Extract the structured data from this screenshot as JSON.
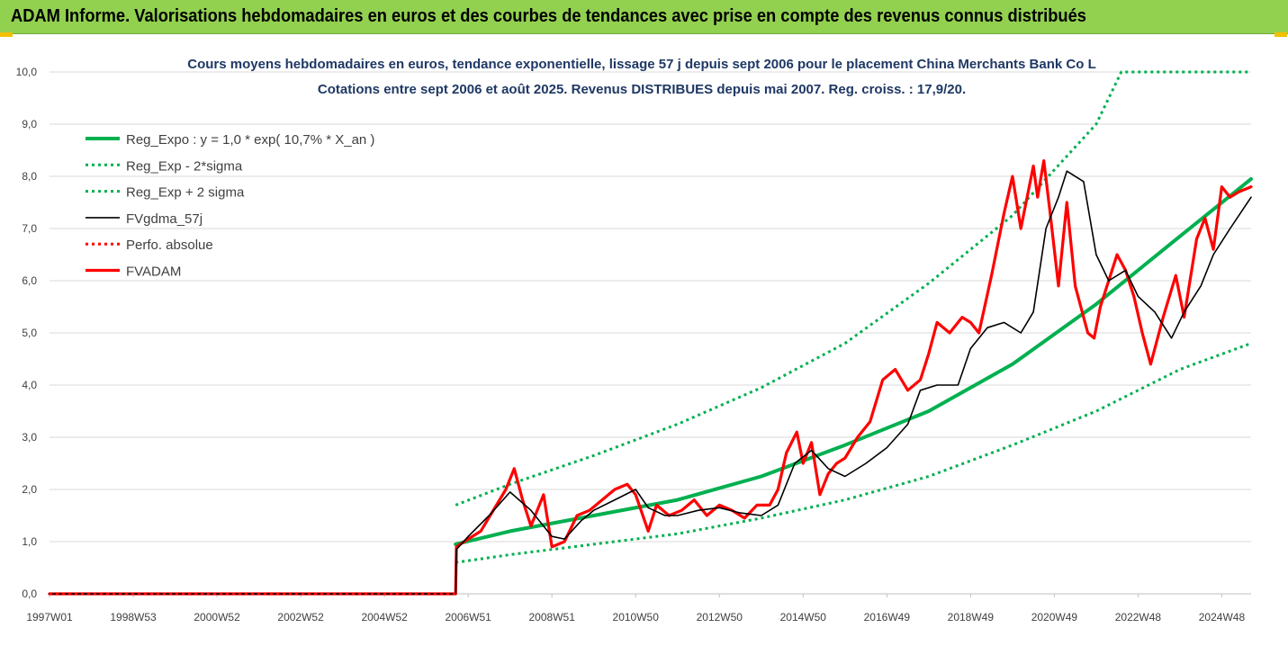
{
  "banner": {
    "title": "ADAM Informe. Valorisations hebdomadaires en euros et des courbes de tendances avec prise en compte des revenus connus distribués"
  },
  "chart_data": {
    "type": "line",
    "title": "Cours moyens hebdomadaires en euros, tendance exponentielle, lissage 57 j depuis sept 2006 pour le placement China Merchants Bank Co L",
    "subtitle": "Cotations entre sept 2006 et août 2025. Revenus DISTRIBUES depuis mai 2007. Reg. croiss. : 17,9/20.",
    "xlabel": "",
    "ylabel": "",
    "ylim": [
      0,
      10
    ],
    "y_ticks": [
      "0,0",
      "1,0",
      "2,0",
      "3,0",
      "4,0",
      "5,0",
      "6,0",
      "7,0",
      "8,0",
      "9,0",
      "10,0"
    ],
    "xlim": [
      1997.0,
      2025.7
    ],
    "x_ticks": [
      {
        "label": "1997W01",
        "year": 1997.0
      },
      {
        "label": "1998W53",
        "year": 1999.0
      },
      {
        "label": "2000W52",
        "year": 2001.0
      },
      {
        "label": "2002W52",
        "year": 2003.0
      },
      {
        "label": "2004W52",
        "year": 2005.0
      },
      {
        "label": "2006W51",
        "year": 2007.0
      },
      {
        "label": "2008W51",
        "year": 2009.0
      },
      {
        "label": "2010W50",
        "year": 2011.0
      },
      {
        "label": "2012W50",
        "year": 2013.0
      },
      {
        "label": "2014W50",
        "year": 2015.0
      },
      {
        "label": "2016W49",
        "year": 2017.0
      },
      {
        "label": "2018W49",
        "year": 2019.0
      },
      {
        "label": "2020W49",
        "year": 2021.0
      },
      {
        "label": "2022W48",
        "year": 2023.0
      },
      {
        "label": "2024W48",
        "year": 2025.0
      }
    ],
    "grid": "horizontal",
    "legend_position": "top-left",
    "series": [
      {
        "name": "Reg_Expo : y = 1,0 * exp( 10,7% *  X_an )",
        "color": "#00b050",
        "style": "solid",
        "x": [
          2006.7,
          2008,
          2010,
          2012,
          2014,
          2016,
          2018,
          2020,
          2022,
          2024,
          2025.7
        ],
        "y": [
          0.95,
          1.2,
          1.5,
          1.8,
          2.25,
          2.85,
          3.5,
          4.4,
          5.55,
          6.85,
          7.95
        ]
      },
      {
        "name": "Reg_Exp - 2*sigma",
        "color": "#00b050",
        "style": "dotted",
        "x": [
          2006.7,
          2008,
          2010,
          2012,
          2014,
          2016,
          2018,
          2020,
          2022,
          2024,
          2025.7
        ],
        "y": [
          0.6,
          0.75,
          0.95,
          1.15,
          1.45,
          1.8,
          2.25,
          2.85,
          3.5,
          4.3,
          4.8
        ]
      },
      {
        "name": "Reg_Exp + 2 sigma",
        "color": "#00b050",
        "style": "dotted",
        "x": [
          2006.7,
          2008,
          2010,
          2012,
          2014,
          2016,
          2018,
          2020,
          2022,
          2022.6,
          2025.7
        ],
        "y": [
          1.7,
          2.1,
          2.65,
          3.25,
          3.95,
          4.8,
          5.95,
          7.25,
          9.0,
          10.0,
          10.0
        ]
      },
      {
        "name": "FVgdma_57j",
        "color": "#000000",
        "style": "solid",
        "x": [
          1997.0,
          2006.7,
          2006.72,
          2007,
          2007.5,
          2008.0,
          2008.5,
          2009.0,
          2009.3,
          2009.7,
          2010,
          2010.5,
          2011,
          2011.3,
          2011.7,
          2012,
          2012.5,
          2013,
          2013.5,
          2014,
          2014.4,
          2014.8,
          2015.2,
          2015.6,
          2016,
          2016.5,
          2017,
          2017.5,
          2017.8,
          2018.2,
          2018.7,
          2019.0,
          2019.4,
          2019.8,
          2020.2,
          2020.5,
          2020.8,
          2021.1,
          2021.3,
          2021.7,
          2022.0,
          2022.3,
          2022.7,
          2023.0,
          2023.4,
          2023.8,
          2024.1,
          2024.5,
          2024.8,
          2025.2,
          2025.7
        ],
        "y": [
          0,
          0,
          0.85,
          1.1,
          1.5,
          1.95,
          1.6,
          1.1,
          1.05,
          1.4,
          1.6,
          1.8,
          2.0,
          1.65,
          1.5,
          1.5,
          1.6,
          1.65,
          1.55,
          1.5,
          1.7,
          2.5,
          2.75,
          2.4,
          2.25,
          2.5,
          2.8,
          3.25,
          3.9,
          4.0,
          4.0,
          4.7,
          5.1,
          5.2,
          5.0,
          5.4,
          7.0,
          7.6,
          8.1,
          7.9,
          6.5,
          6.0,
          6.2,
          5.7,
          5.4,
          4.9,
          5.4,
          5.9,
          6.5,
          7.0,
          7.6
        ]
      },
      {
        "name": "Perfo. absolue",
        "color": "#ff0000",
        "style": "dotted",
        "x": [
          1997.0,
          2006.7
        ],
        "y": [
          0,
          0
        ]
      },
      {
        "name": "FVADAM",
        "color": "#ff0000",
        "style": "solid",
        "x": [
          1997.0,
          2006.7,
          2006.72,
          2007.0,
          2007.3,
          2007.6,
          2007.9,
          2008.1,
          2008.3,
          2008.5,
          2008.8,
          2009.0,
          2009.3,
          2009.6,
          2009.9,
          2010.2,
          2010.5,
          2010.8,
          2011.0,
          2011.3,
          2011.5,
          2011.8,
          2012.1,
          2012.4,
          2012.7,
          2013.0,
          2013.3,
          2013.6,
          2013.9,
          2014.2,
          2014.4,
          2014.6,
          2014.85,
          2015.0,
          2015.2,
          2015.4,
          2015.6,
          2015.8,
          2016.0,
          2016.3,
          2016.6,
          2016.9,
          2017.2,
          2017.5,
          2017.8,
          2018.0,
          2018.2,
          2018.5,
          2018.8,
          2019.0,
          2019.2,
          2019.5,
          2019.8,
          2020.0,
          2020.2,
          2020.5,
          2020.6,
          2020.75,
          2020.9,
          2021.1,
          2021.3,
          2021.5,
          2021.8,
          2021.95,
          2022.1,
          2022.3,
          2022.5,
          2022.7,
          2022.9,
          2023.1,
          2023.3,
          2023.6,
          2023.9,
          2024.1,
          2024.4,
          2024.6,
          2024.8,
          2025.0,
          2025.2,
          2025.4,
          2025.7
        ],
        "y": [
          0,
          0,
          0.9,
          1.05,
          1.2,
          1.6,
          2.0,
          2.4,
          1.8,
          1.3,
          1.9,
          0.9,
          1.0,
          1.5,
          1.6,
          1.8,
          2.0,
          2.1,
          1.9,
          1.2,
          1.7,
          1.5,
          1.6,
          1.8,
          1.5,
          1.7,
          1.6,
          1.45,
          1.7,
          1.7,
          2.0,
          2.7,
          3.1,
          2.5,
          2.9,
          1.9,
          2.3,
          2.5,
          2.6,
          3.0,
          3.3,
          4.1,
          4.3,
          3.9,
          4.1,
          4.6,
          5.2,
          5.0,
          5.3,
          5.2,
          5.0,
          6.1,
          7.3,
          8.0,
          7.0,
          8.2,
          7.6,
          8.3,
          7.3,
          5.9,
          7.5,
          5.9,
          5.0,
          4.9,
          5.5,
          6.0,
          6.5,
          6.2,
          5.7,
          5.0,
          4.4,
          5.3,
          6.1,
          5.3,
          6.8,
          7.2,
          6.6,
          7.8,
          7.6,
          7.7,
          7.8
        ]
      }
    ]
  }
}
